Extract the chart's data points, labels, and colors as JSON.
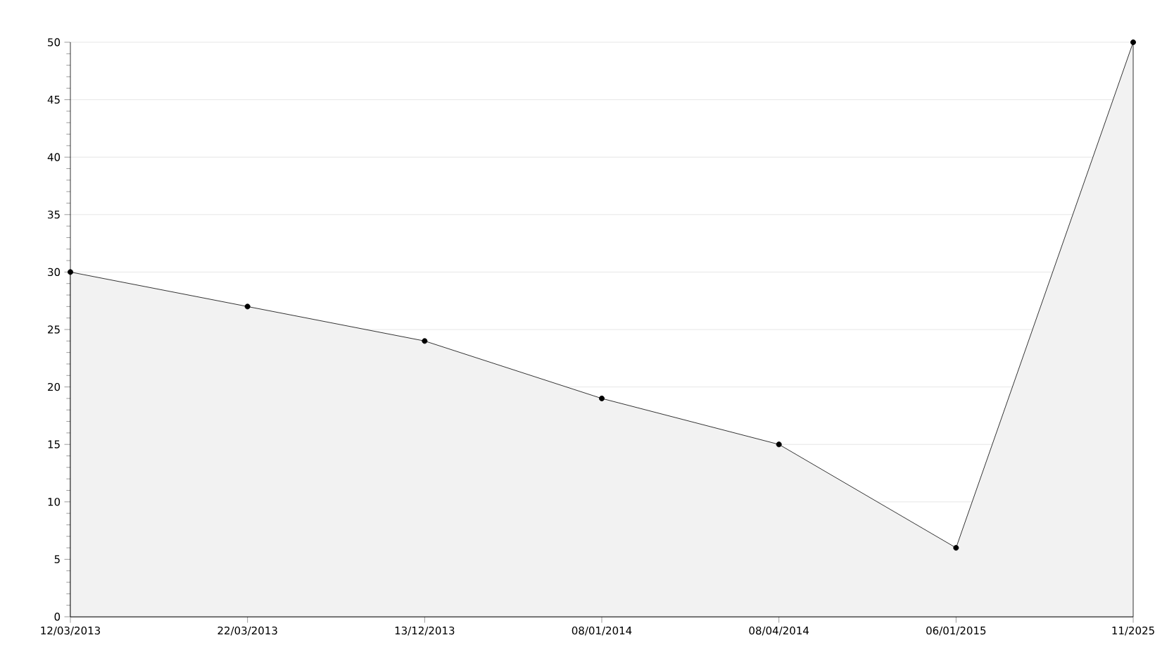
{
  "chart_data": {
    "type": "area",
    "categories": [
      "12/03/2013",
      "22/03/2013",
      "13/12/2013",
      "08/01/2014",
      "08/04/2014",
      "06/01/2015",
      "11/2025"
    ],
    "series": [
      {
        "color": "#000000",
        "values": [
          30,
          27,
          24,
          19,
          15,
          6,
          50
        ]
      }
    ],
    "ylim": [
      0,
      50
    ],
    "yticks": [
      0,
      5,
      10,
      15,
      20,
      25,
      30,
      35,
      40,
      45,
      50
    ],
    "grid": "y",
    "marker": "circle",
    "line_style": "solid"
  }
}
